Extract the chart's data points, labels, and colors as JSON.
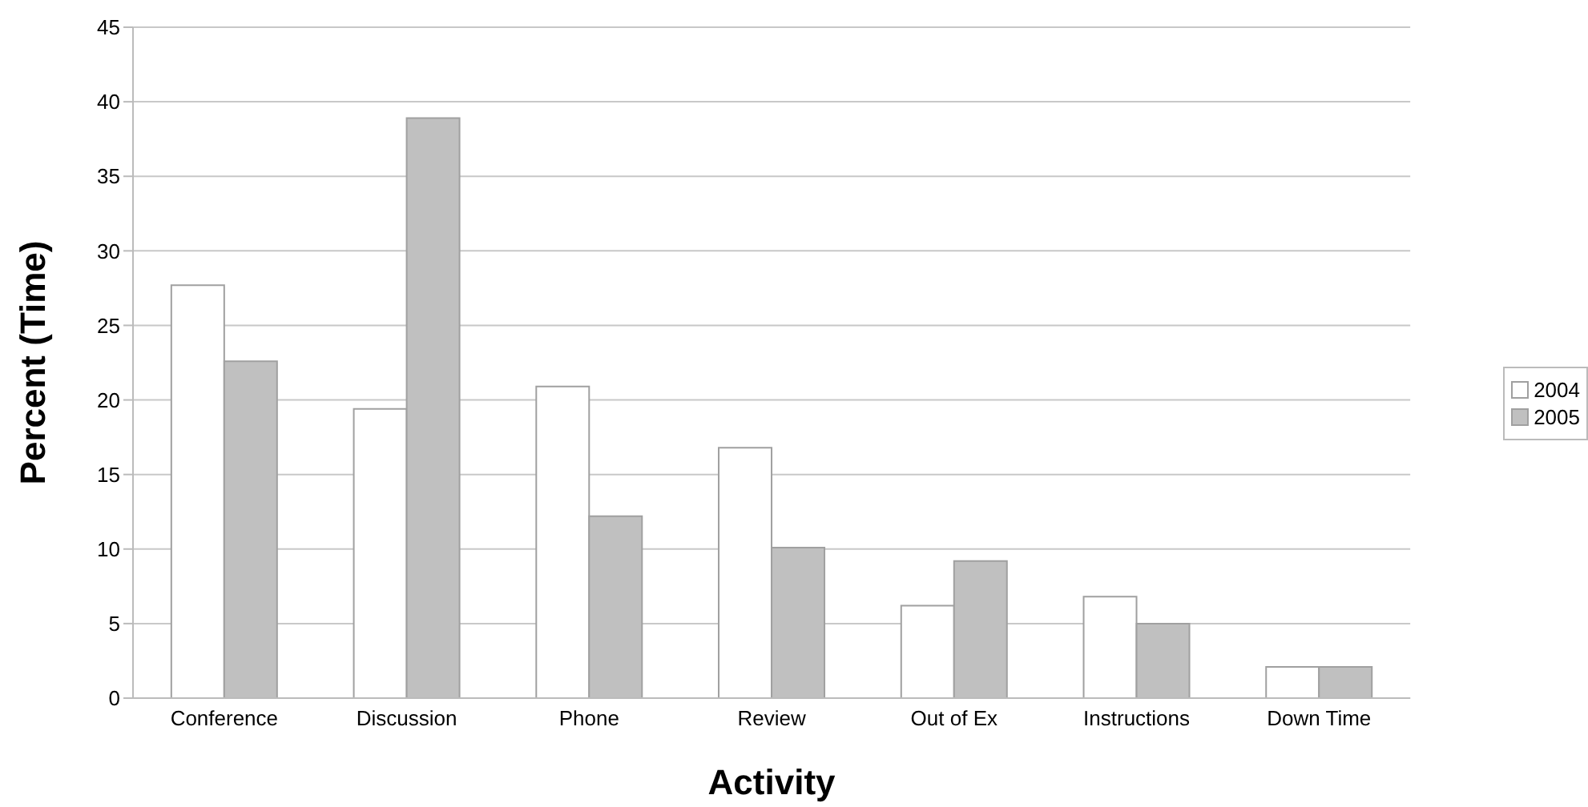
{
  "chart_data": {
    "type": "bar",
    "xlabel": "Activity",
    "ylabel": "Percent (Time)",
    "categories": [
      "Conference",
      "Discussion",
      "Phone",
      "Review",
      "Out of Ex",
      "Instructions",
      "Down Time"
    ],
    "series": [
      {
        "name": "2004",
        "color": "#ffffff",
        "values": [
          27.7,
          19.4,
          20.9,
          16.8,
          6.2,
          6.8,
          2.1
        ]
      },
      {
        "name": "2005",
        "color": "#c0c0c0",
        "values": [
          22.6,
          38.9,
          12.2,
          10.1,
          9.2,
          5.0,
          2.1
        ]
      }
    ],
    "ylim": [
      0,
      45
    ],
    "yticks": [
      0,
      5,
      10,
      15,
      20,
      25,
      30,
      35,
      40,
      45
    ],
    "grid": "y",
    "legend": "right"
  }
}
